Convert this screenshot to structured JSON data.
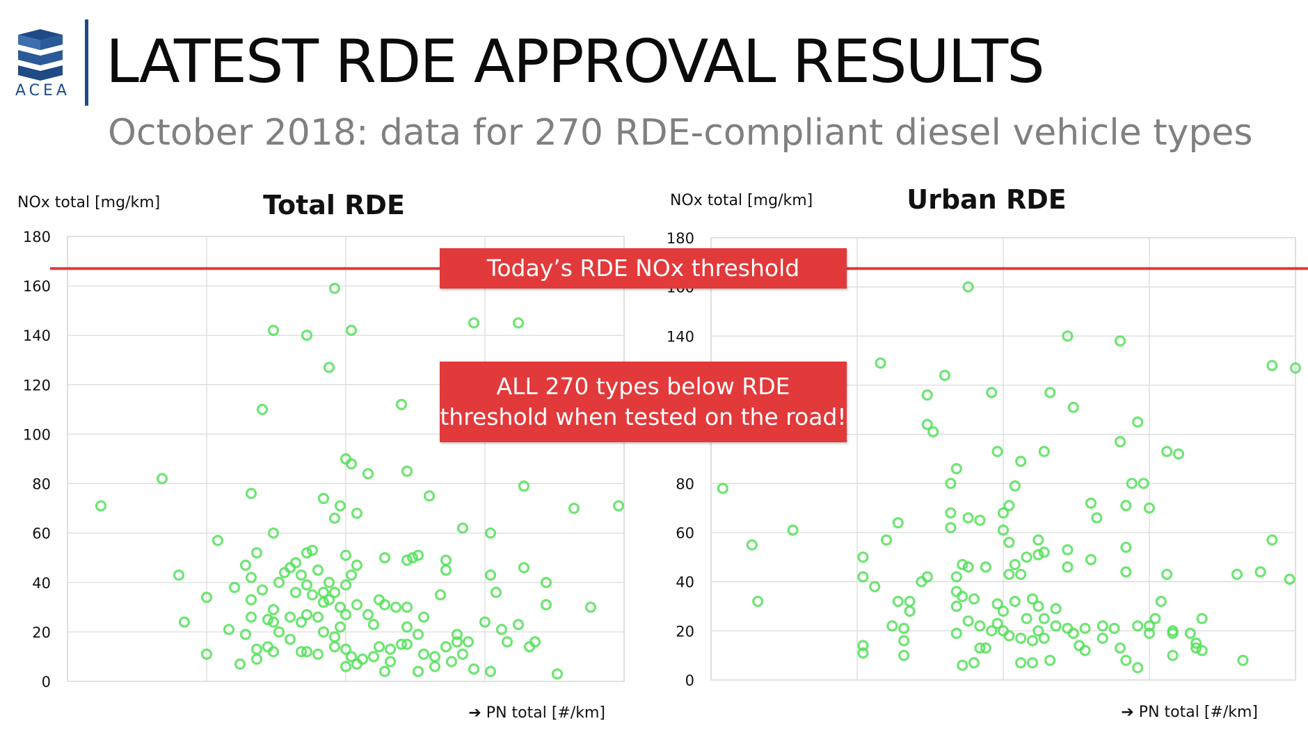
{
  "header": {
    "logo_text": "ACEA",
    "title": "LATEST RDE APPROVAL RESULTS",
    "subtitle": "October 2018: data for 270 RDE-compliant diesel vehicle types"
  },
  "colors": {
    "threshold": "#e2393b",
    "point": "#55e05a",
    "brand": "#1f4a86"
  },
  "callouts": {
    "threshold_label": "Today’s RDE NOx threshold",
    "all_line1": "ALL 270 types below RDE",
    "all_line2": "threshold when tested on the road!"
  },
  "threshold_value": 167,
  "chart_data": [
    {
      "type": "scatter",
      "title": "Total RDE",
      "ylabel": "NOx total [mg/km]",
      "xlabel": "➔ PN total [#/km]",
      "ylim": [
        0,
        180
      ],
      "xlim": [
        0,
        100
      ],
      "yticks": [
        "0",
        "20",
        "40",
        "60",
        "80",
        "100",
        "120",
        "140",
        "160",
        "180"
      ],
      "grid": true,
      "points": [
        {
          "x": 6,
          "y": 71
        },
        {
          "x": 17,
          "y": 82
        },
        {
          "x": 20,
          "y": 43
        },
        {
          "x": 21,
          "y": 24
        },
        {
          "x": 25,
          "y": 34
        },
        {
          "x": 25,
          "y": 11
        },
        {
          "x": 27,
          "y": 57
        },
        {
          "x": 29,
          "y": 21
        },
        {
          "x": 30,
          "y": 38
        },
        {
          "x": 31,
          "y": 7
        },
        {
          "x": 32,
          "y": 47
        },
        {
          "x": 32,
          "y": 19
        },
        {
          "x": 33,
          "y": 76
        },
        {
          "x": 33,
          "y": 42
        },
        {
          "x": 33,
          "y": 33
        },
        {
          "x": 33,
          "y": 26
        },
        {
          "x": 34,
          "y": 13
        },
        {
          "x": 34,
          "y": 9
        },
        {
          "x": 34,
          "y": 52
        },
        {
          "x": 35,
          "y": 37
        },
        {
          "x": 35,
          "y": 110
        },
        {
          "x": 36,
          "y": 25
        },
        {
          "x": 36,
          "y": 14
        },
        {
          "x": 37,
          "y": 142
        },
        {
          "x": 37,
          "y": 60
        },
        {
          "x": 37,
          "y": 29
        },
        {
          "x": 37,
          "y": 24
        },
        {
          "x": 37,
          "y": 12
        },
        {
          "x": 38,
          "y": 40
        },
        {
          "x": 38,
          "y": 20
        },
        {
          "x": 39,
          "y": 44
        },
        {
          "x": 40,
          "y": 46
        },
        {
          "x": 40,
          "y": 26
        },
        {
          "x": 40,
          "y": 17
        },
        {
          "x": 41,
          "y": 48
        },
        {
          "x": 41,
          "y": 36
        },
        {
          "x": 42,
          "y": 43
        },
        {
          "x": 42,
          "y": 24
        },
        {
          "x": 42,
          "y": 12
        },
        {
          "x": 43,
          "y": 140
        },
        {
          "x": 43,
          "y": 52
        },
        {
          "x": 43,
          "y": 39
        },
        {
          "x": 43,
          "y": 27
        },
        {
          "x": 43,
          "y": 12
        },
        {
          "x": 44,
          "y": 53
        },
        {
          "x": 44,
          "y": 35
        },
        {
          "x": 45,
          "y": 45
        },
        {
          "x": 45,
          "y": 26
        },
        {
          "x": 45,
          "y": 11
        },
        {
          "x": 46,
          "y": 32
        },
        {
          "x": 46,
          "y": 20
        },
        {
          "x": 46,
          "y": 74
        },
        {
          "x": 46,
          "y": 36
        },
        {
          "x": 47,
          "y": 40
        },
        {
          "x": 47,
          "y": 33
        },
        {
          "x": 47,
          "y": 127
        },
        {
          "x": 48,
          "y": 159
        },
        {
          "x": 48,
          "y": 66
        },
        {
          "x": 48,
          "y": 36
        },
        {
          "x": 48,
          "y": 18
        },
        {
          "x": 48,
          "y": 14
        },
        {
          "x": 49,
          "y": 71
        },
        {
          "x": 49,
          "y": 30
        },
        {
          "x": 49,
          "y": 22
        },
        {
          "x": 50,
          "y": 90
        },
        {
          "x": 50,
          "y": 51
        },
        {
          "x": 50,
          "y": 39
        },
        {
          "x": 50,
          "y": 27
        },
        {
          "x": 50,
          "y": 13
        },
        {
          "x": 50,
          "y": 6
        },
        {
          "x": 51,
          "y": 142
        },
        {
          "x": 51,
          "y": 88
        },
        {
          "x": 51,
          "y": 43
        },
        {
          "x": 51,
          "y": 10
        },
        {
          "x": 52,
          "y": 68
        },
        {
          "x": 52,
          "y": 47
        },
        {
          "x": 52,
          "y": 31
        },
        {
          "x": 52,
          "y": 7
        },
        {
          "x": 53,
          "y": 9
        },
        {
          "x": 54,
          "y": 84
        },
        {
          "x": 54,
          "y": 27
        },
        {
          "x": 55,
          "y": 10
        },
        {
          "x": 55,
          "y": 23
        },
        {
          "x": 56,
          "y": 33
        },
        {
          "x": 56,
          "y": 14
        },
        {
          "x": 57,
          "y": 50
        },
        {
          "x": 57,
          "y": 31
        },
        {
          "x": 57,
          "y": 4
        },
        {
          "x": 58,
          "y": 8
        },
        {
          "x": 58,
          "y": 13
        },
        {
          "x": 59,
          "y": 30
        },
        {
          "x": 60,
          "y": 112
        },
        {
          "x": 60,
          "y": 15
        },
        {
          "x": 61,
          "y": 85
        },
        {
          "x": 61,
          "y": 49
        },
        {
          "x": 61,
          "y": 30
        },
        {
          "x": 61,
          "y": 22
        },
        {
          "x": 61,
          "y": 15
        },
        {
          "x": 62,
          "y": 50
        },
        {
          "x": 63,
          "y": 51
        },
        {
          "x": 63,
          "y": 19
        },
        {
          "x": 63,
          "y": 4
        },
        {
          "x": 64,
          "y": 26
        },
        {
          "x": 64,
          "y": 11
        },
        {
          "x": 65,
          "y": 75
        },
        {
          "x": 66,
          "y": 10
        },
        {
          "x": 66,
          "y": 6
        },
        {
          "x": 67,
          "y": 35
        },
        {
          "x": 68,
          "y": 49
        },
        {
          "x": 68,
          "y": 45
        },
        {
          "x": 68,
          "y": 14
        },
        {
          "x": 69,
          "y": 8
        },
        {
          "x": 70,
          "y": 19
        },
        {
          "x": 70,
          "y": 16
        },
        {
          "x": 71,
          "y": 62
        },
        {
          "x": 71,
          "y": 11
        },
        {
          "x": 72,
          "y": 16
        },
        {
          "x": 73,
          "y": 145
        },
        {
          "x": 73,
          "y": 5
        },
        {
          "x": 75,
          "y": 24
        },
        {
          "x": 76,
          "y": 60
        },
        {
          "x": 76,
          "y": 43
        },
        {
          "x": 76,
          "y": 4
        },
        {
          "x": 77,
          "y": 36
        },
        {
          "x": 78,
          "y": 21
        },
        {
          "x": 79,
          "y": 16
        },
        {
          "x": 81,
          "y": 145
        },
        {
          "x": 81,
          "y": 23
        },
        {
          "x": 82,
          "y": 46
        },
        {
          "x": 82,
          "y": 79
        },
        {
          "x": 83,
          "y": 14
        },
        {
          "x": 84,
          "y": 16
        },
        {
          "x": 86,
          "y": 31
        },
        {
          "x": 86,
          "y": 40
        },
        {
          "x": 88,
          "y": 3
        },
        {
          "x": 91,
          "y": 70
        },
        {
          "x": 94,
          "y": 30
        },
        {
          "x": 99,
          "y": 71
        }
      ]
    },
    {
      "type": "scatter",
      "title": "Urban RDE",
      "ylabel": "NOx total [mg/km]",
      "xlabel": "➔ PN total [#/km]",
      "ylim": [
        0,
        180
      ],
      "xlim": [
        0,
        100
      ],
      "yticks": [
        "0",
        "20",
        "40",
        "60",
        "80",
        "100",
        "120",
        "140",
        "160",
        "180"
      ],
      "grid": true,
      "points": [
        {
          "x": 2,
          "y": 78
        },
        {
          "x": 7,
          "y": 55
        },
        {
          "x": 8,
          "y": 32
        },
        {
          "x": 14,
          "y": 61
        },
        {
          "x": 26,
          "y": 50
        },
        {
          "x": 26,
          "y": 42
        },
        {
          "x": 26,
          "y": 14
        },
        {
          "x": 26,
          "y": 11
        },
        {
          "x": 28,
          "y": 38
        },
        {
          "x": 29,
          "y": 129
        },
        {
          "x": 30,
          "y": 57
        },
        {
          "x": 31,
          "y": 22
        },
        {
          "x": 32,
          "y": 64
        },
        {
          "x": 32,
          "y": 32
        },
        {
          "x": 33,
          "y": 21
        },
        {
          "x": 33,
          "y": 16
        },
        {
          "x": 33,
          "y": 10
        },
        {
          "x": 34,
          "y": 32
        },
        {
          "x": 34,
          "y": 28
        },
        {
          "x": 36,
          "y": 40
        },
        {
          "x": 37,
          "y": 116
        },
        {
          "x": 37,
          "y": 42
        },
        {
          "x": 37,
          "y": 104
        },
        {
          "x": 38,
          "y": 101
        },
        {
          "x": 40,
          "y": 124
        },
        {
          "x": 41,
          "y": 68
        },
        {
          "x": 41,
          "y": 62
        },
        {
          "x": 41,
          "y": 80
        },
        {
          "x": 42,
          "y": 86
        },
        {
          "x": 42,
          "y": 36
        },
        {
          "x": 42,
          "y": 42
        },
        {
          "x": 42,
          "y": 30
        },
        {
          "x": 42,
          "y": 19
        },
        {
          "x": 43,
          "y": 47
        },
        {
          "x": 43,
          "y": 34
        },
        {
          "x": 43,
          "y": 6
        },
        {
          "x": 44,
          "y": 160
        },
        {
          "x": 44,
          "y": 66
        },
        {
          "x": 44,
          "y": 46
        },
        {
          "x": 44,
          "y": 24
        },
        {
          "x": 45,
          "y": 33
        },
        {
          "x": 45,
          "y": 7
        },
        {
          "x": 46,
          "y": 65
        },
        {
          "x": 46,
          "y": 22
        },
        {
          "x": 46,
          "y": 13
        },
        {
          "x": 47,
          "y": 46
        },
        {
          "x": 47,
          "y": 13
        },
        {
          "x": 48,
          "y": 117
        },
        {
          "x": 48,
          "y": 20
        },
        {
          "x": 49,
          "y": 93
        },
        {
          "x": 49,
          "y": 31
        },
        {
          "x": 49,
          "y": 23
        },
        {
          "x": 50,
          "y": 68
        },
        {
          "x": 50,
          "y": 61
        },
        {
          "x": 50,
          "y": 28
        },
        {
          "x": 50,
          "y": 20
        },
        {
          "x": 51,
          "y": 71
        },
        {
          "x": 51,
          "y": 56
        },
        {
          "x": 51,
          "y": 43
        },
        {
          "x": 51,
          "y": 18
        },
        {
          "x": 52,
          "y": 79
        },
        {
          "x": 52,
          "y": 47
        },
        {
          "x": 52,
          "y": 32
        },
        {
          "x": 53,
          "y": 89
        },
        {
          "x": 53,
          "y": 43
        },
        {
          "x": 53,
          "y": 17
        },
        {
          "x": 53,
          "y": 7
        },
        {
          "x": 54,
          "y": 50
        },
        {
          "x": 54,
          "y": 25
        },
        {
          "x": 55,
          "y": 33
        },
        {
          "x": 55,
          "y": 16
        },
        {
          "x": 55,
          "y": 7
        },
        {
          "x": 56,
          "y": 57
        },
        {
          "x": 56,
          "y": 51
        },
        {
          "x": 56,
          "y": 30
        },
        {
          "x": 56,
          "y": 20
        },
        {
          "x": 57,
          "y": 93
        },
        {
          "x": 57,
          "y": 52
        },
        {
          "x": 57,
          "y": 25
        },
        {
          "x": 57,
          "y": 17
        },
        {
          "x": 58,
          "y": 117
        },
        {
          "x": 58,
          "y": 8
        },
        {
          "x": 59,
          "y": 29
        },
        {
          "x": 59,
          "y": 22
        },
        {
          "x": 61,
          "y": 53
        },
        {
          "x": 61,
          "y": 46
        },
        {
          "x": 61,
          "y": 21
        },
        {
          "x": 61,
          "y": 140
        },
        {
          "x": 62,
          "y": 111
        },
        {
          "x": 62,
          "y": 19
        },
        {
          "x": 63,
          "y": 14
        },
        {
          "x": 64,
          "y": 12
        },
        {
          "x": 64,
          "y": 21
        },
        {
          "x": 65,
          "y": 49
        },
        {
          "x": 65,
          "y": 72
        },
        {
          "x": 66,
          "y": 66
        },
        {
          "x": 67,
          "y": 22
        },
        {
          "x": 67,
          "y": 17
        },
        {
          "x": 69,
          "y": 21
        },
        {
          "x": 70,
          "y": 13
        },
        {
          "x": 70,
          "y": 138
        },
        {
          "x": 70,
          "y": 97
        },
        {
          "x": 71,
          "y": 8
        },
        {
          "x": 71,
          "y": 44
        },
        {
          "x": 71,
          "y": 54
        },
        {
          "x": 71,
          "y": 71
        },
        {
          "x": 72,
          "y": 80
        },
        {
          "x": 73,
          "y": 105
        },
        {
          "x": 73,
          "y": 22
        },
        {
          "x": 73,
          "y": 5
        },
        {
          "x": 74,
          "y": 80
        },
        {
          "x": 75,
          "y": 19
        },
        {
          "x": 75,
          "y": 70
        },
        {
          "x": 75,
          "y": 22
        },
        {
          "x": 76,
          "y": 25
        },
        {
          "x": 77,
          "y": 32
        },
        {
          "x": 78,
          "y": 43
        },
        {
          "x": 78,
          "y": 93
        },
        {
          "x": 79,
          "y": 20
        },
        {
          "x": 79,
          "y": 19
        },
        {
          "x": 79,
          "y": 10
        },
        {
          "x": 80,
          "y": 92
        },
        {
          "x": 82,
          "y": 19
        },
        {
          "x": 83,
          "y": 13
        },
        {
          "x": 83,
          "y": 15
        },
        {
          "x": 84,
          "y": 25
        },
        {
          "x": 84,
          "y": 12
        },
        {
          "x": 90,
          "y": 43
        },
        {
          "x": 91,
          "y": 8
        },
        {
          "x": 94,
          "y": 44
        },
        {
          "x": 96,
          "y": 57
        },
        {
          "x": 96,
          "y": 128
        },
        {
          "x": 99,
          "y": 41
        },
        {
          "x": 100,
          "y": 127
        }
      ]
    }
  ]
}
